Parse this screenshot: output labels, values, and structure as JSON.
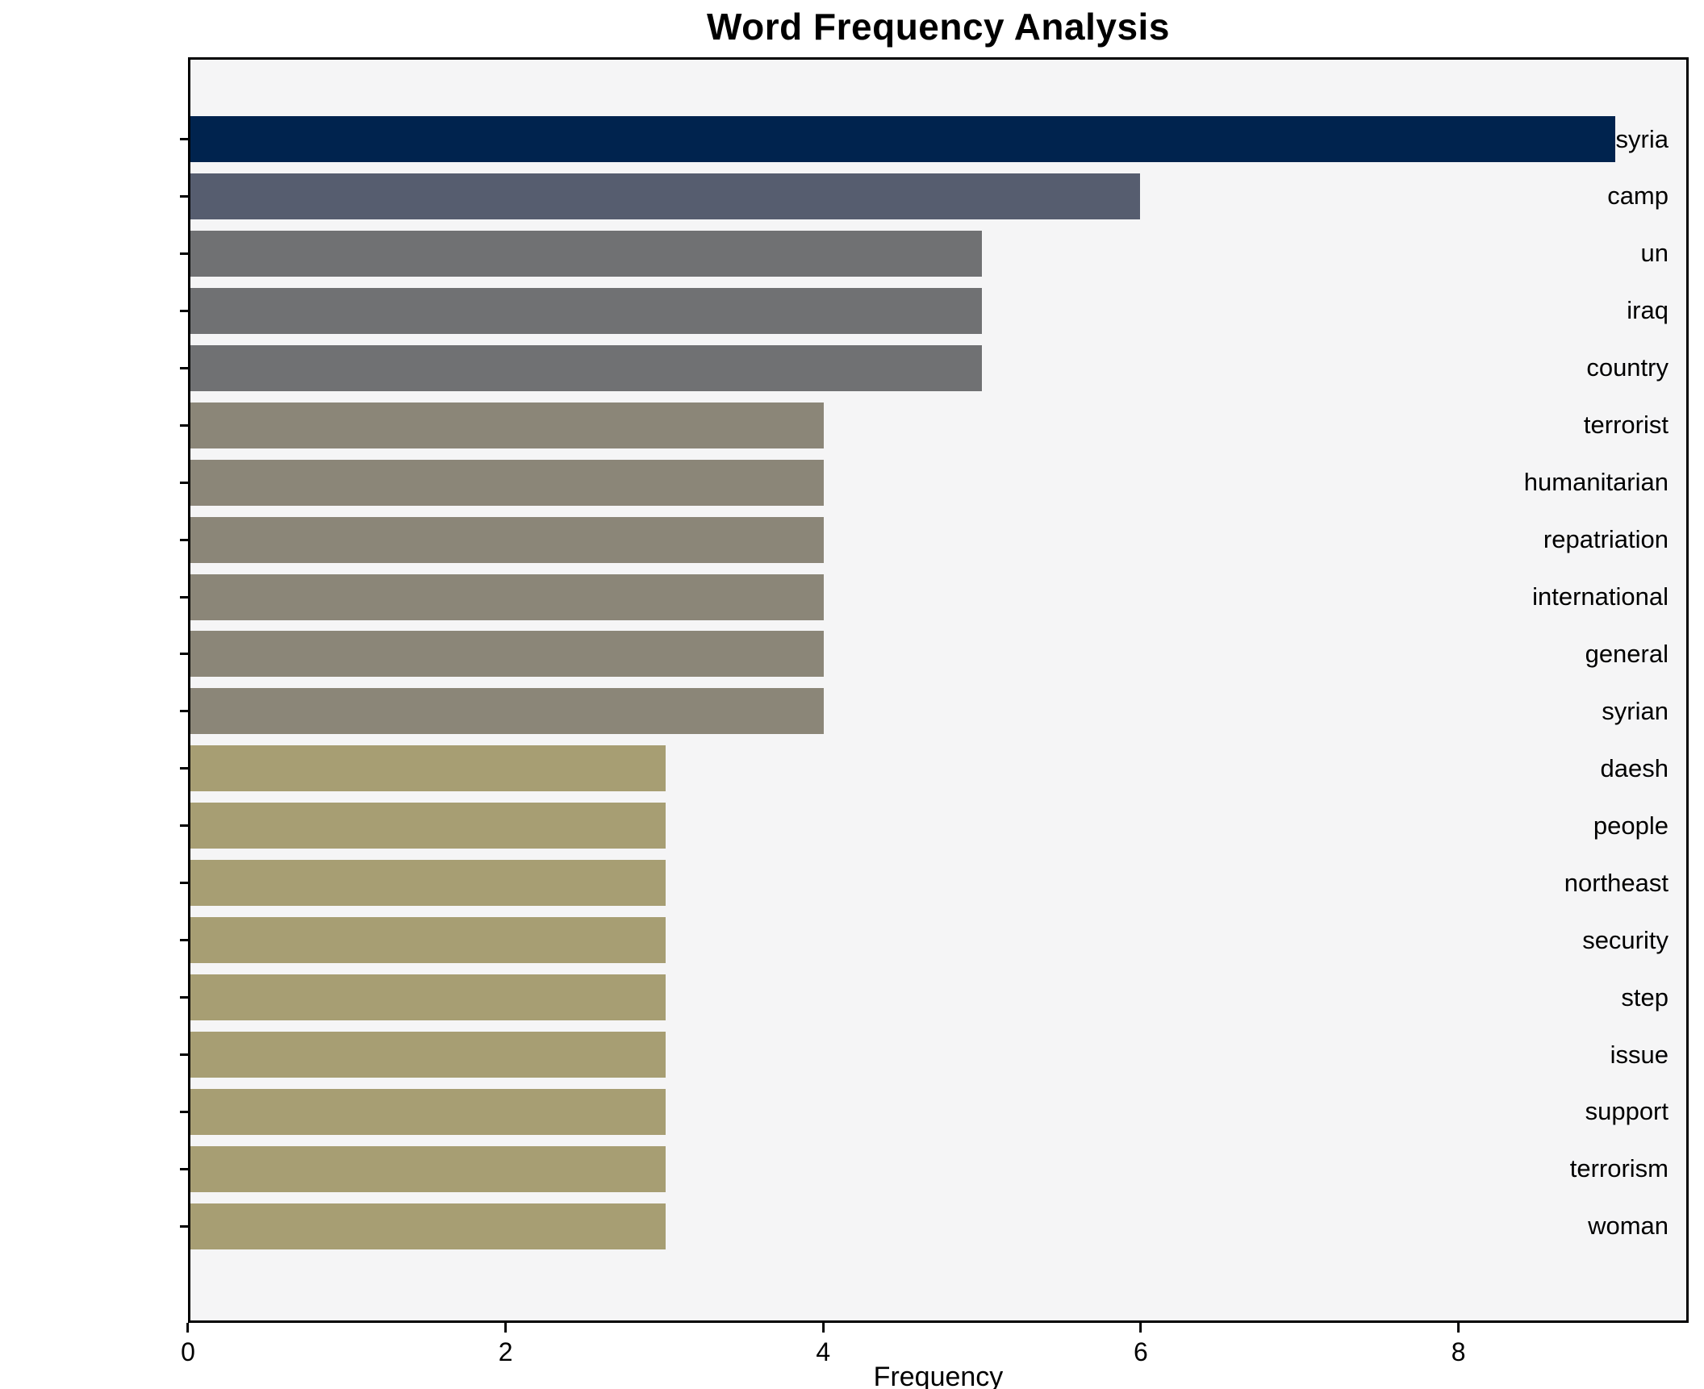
{
  "title": "Word Frequency Analysis",
  "chart_data": {
    "type": "bar",
    "orientation": "horizontal",
    "title": "Word Frequency Analysis",
    "xlabel": "Frequency",
    "ylabel": "",
    "categories": [
      "syria",
      "camp",
      "un",
      "iraq",
      "country",
      "terrorist",
      "humanitarian",
      "repatriation",
      "international",
      "general",
      "syrian",
      "daesh",
      "people",
      "northeast",
      "security",
      "step",
      "issue",
      "support",
      "terrorism",
      "woman"
    ],
    "values": [
      9,
      6,
      5,
      5,
      5,
      4,
      4,
      4,
      4,
      4,
      4,
      3,
      3,
      3,
      3,
      3,
      3,
      3,
      3,
      3
    ],
    "bar_colors": [
      "#00234e",
      "#565d6f",
      "#707173",
      "#707173",
      "#707173",
      "#8b8678",
      "#8b8678",
      "#8b8678",
      "#8b8678",
      "#8b8678",
      "#8b8678",
      "#a79e73",
      "#a79e73",
      "#a79e73",
      "#a79e73",
      "#a79e73",
      "#a79e73",
      "#a79e73",
      "#a79e73",
      "#a79e73"
    ],
    "x_ticks": [
      0,
      2,
      4,
      6,
      8
    ],
    "xlim": [
      0,
      9.45
    ],
    "grid": false,
    "legend_position": "none",
    "plot_background": "#f5f5f6",
    "frame_color": "#000000"
  }
}
